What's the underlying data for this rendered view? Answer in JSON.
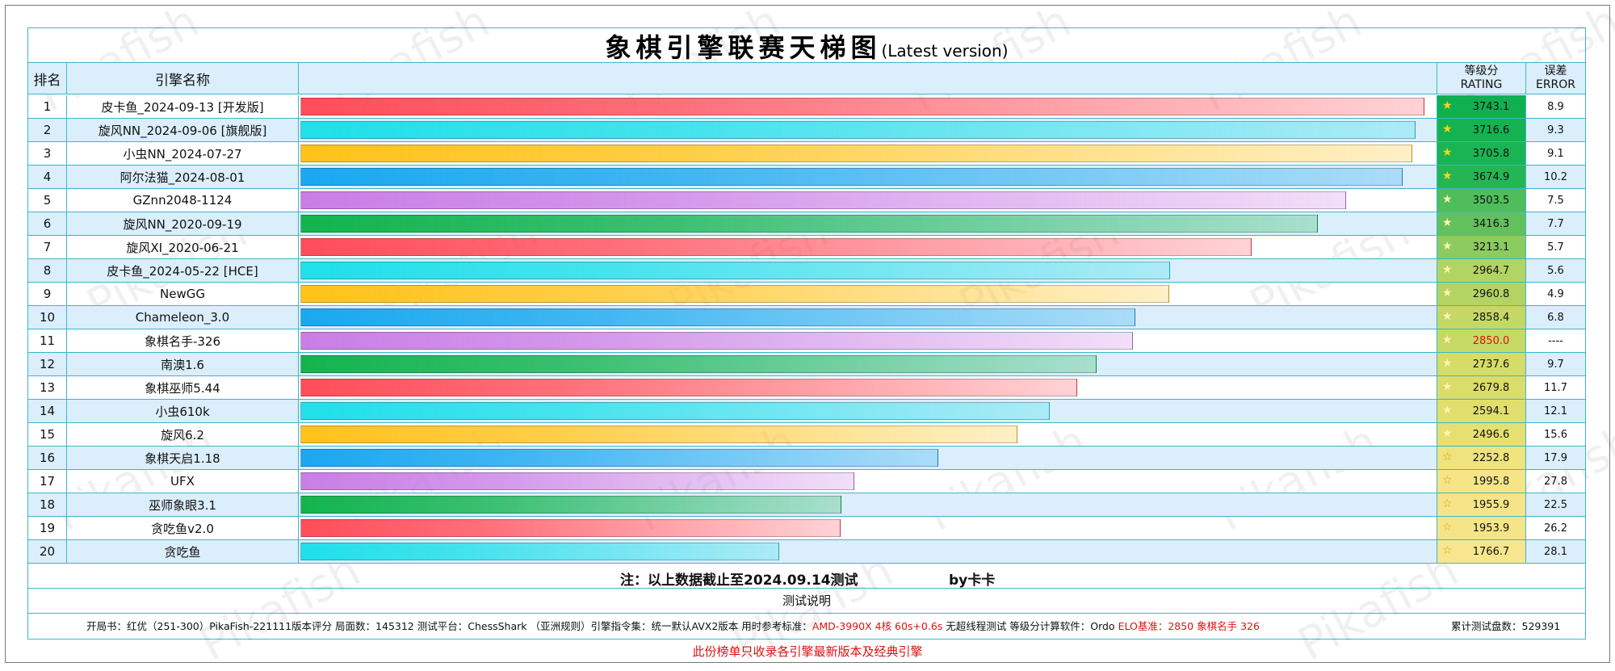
{
  "title": {
    "main": "象棋引擎联赛天梯图",
    "sub": "(Latest version)"
  },
  "watermark": "Pikafish",
  "headers": {
    "rank": "排名",
    "name": "引擎名称",
    "rating_cn": "等级分",
    "rating_en": "RATING",
    "error_cn": "误差",
    "error_en": "ERROR"
  },
  "chart_data": {
    "type": "bar",
    "orientation": "horizontal",
    "title": "象棋引擎联赛天梯图(Latest version)",
    "rows": [
      {
        "rank": "1",
        "name": "皮卡鱼_2024-09-13 [开发版]",
        "rating": 3743.1,
        "rating_text": "3743.1",
        "error": "8.9",
        "color": "#ff4d5a",
        "star_fill": "gold",
        "rating_bg": "#10b050"
      },
      {
        "rank": "2",
        "name": "旋风NN_2024-09-06 [旗舰版]",
        "rating": 3716.6,
        "rating_text": "3716.6",
        "error": "9.3",
        "color": "#1fe0ea",
        "star_fill": "gold",
        "rating_bg": "#14b251"
      },
      {
        "rank": "3",
        "name": "小虫NN_2024-07-27",
        "rating": 3705.8,
        "rating_text": "3705.8",
        "error": "9.1",
        "color": "#ffc21a",
        "star_fill": "gold",
        "rating_bg": "#1ab453"
      },
      {
        "rank": "4",
        "name": "阿尔法猫_2024-08-01",
        "rating": 3674.9,
        "rating_text": "3674.9",
        "error": "10.2",
        "color": "#1aa8f0",
        "star_fill": "gold",
        "rating_bg": "#24b655"
      },
      {
        "rank": "5",
        "name": "GZnn2048-1124",
        "rating": 3503.5,
        "rating_text": "3503.5",
        "error": "7.5",
        "color": "#c97ee6",
        "star_fill": "light",
        "rating_bg": "#4fbd5b"
      },
      {
        "rank": "6",
        "name": "旋风NN_2020-09-19",
        "rating": 3416.3,
        "rating_text": "3416.3",
        "error": "7.7",
        "color": "#12b44e",
        "star_fill": "light",
        "rating_bg": "#63c15d"
      },
      {
        "rank": "7",
        "name": "旋风XI_2020-06-21",
        "rating": 3213.1,
        "rating_text": "3213.1",
        "error": "5.7",
        "color": "#ff4d5a",
        "star_fill": "light",
        "rating_bg": "#8ccb60"
      },
      {
        "rank": "8",
        "name": "皮卡鱼_2024-05-22 [HCE]",
        "rating": 2964.7,
        "rating_text": "2964.7",
        "error": "5.6",
        "color": "#1fe0ea",
        "star_fill": "light",
        "rating_bg": "#b2d463"
      },
      {
        "rank": "9",
        "name": "NewGG",
        "rating": 2960.8,
        "rating_text": "2960.8",
        "error": "4.9",
        "color": "#ffc21a",
        "star_fill": "light",
        "rating_bg": "#b3d463"
      },
      {
        "rank": "10",
        "name": "Chameleon_3.0",
        "rating": 2858.4,
        "rating_text": "2858.4",
        "error": "6.8",
        "color": "#1aa8f0",
        "star_fill": "light",
        "rating_bg": "#c4d865"
      },
      {
        "rank": "11",
        "name": "象棋名手-326",
        "rating": 2850.0,
        "rating_text": "2850.0",
        "error": "----",
        "color": "#c97ee6",
        "star_fill": "light",
        "rating_bg": "#c6d965",
        "rating_color": "#e01010"
      },
      {
        "rank": "12",
        "name": "南澳1.6",
        "rating": 2737.6,
        "rating_text": "2737.6",
        "error": "9.7",
        "color": "#12b44e",
        "star_fill": "light",
        "rating_bg": "#d5dc68"
      },
      {
        "rank": "13",
        "name": "象棋巫师5.44",
        "rating": 2679.8,
        "rating_text": "2679.8",
        "error": "11.7",
        "color": "#ff4d5a",
        "star_fill": "light",
        "rating_bg": "#dadd6a"
      },
      {
        "rank": "14",
        "name": "小虫610k",
        "rating": 2594.1,
        "rating_text": "2594.1",
        "error": "12.1",
        "color": "#1fe0ea",
        "star_fill": "light",
        "rating_bg": "#e0df6e"
      },
      {
        "rank": "15",
        "name": "旋风6.2",
        "rating": 2496.6,
        "rating_text": "2496.6",
        "error": "15.6",
        "color": "#ffc21a",
        "star_fill": "light",
        "rating_bg": "#e6e073"
      },
      {
        "rank": "16",
        "name": "象棋天启1.18",
        "rating": 2252.8,
        "rating_text": "2252.8",
        "error": "17.9",
        "color": "#1aa8f0",
        "star_fill": "outline",
        "rating_bg": "#eee37c"
      },
      {
        "rank": "17",
        "name": "UFX",
        "rating": 1995.8,
        "rating_text": "1995.8",
        "error": "27.8",
        "color": "#c97ee6",
        "star_fill": "outline",
        "rating_bg": "#f5e586"
      },
      {
        "rank": "18",
        "name": "巫师象眼3.1",
        "rating": 1955.9,
        "rating_text": "1955.9",
        "error": "22.5",
        "color": "#12b44e",
        "star_fill": "outline",
        "rating_bg": "#f6e588"
      },
      {
        "rank": "19",
        "name": "贪吃鱼v2.0",
        "rating": 1953.9,
        "rating_text": "1953.9",
        "error": "26.2",
        "color": "#ff4d5a",
        "star_fill": "outline",
        "rating_bg": "#f6e588"
      },
      {
        "rank": "20",
        "name": "贪吃鱼",
        "rating": 1766.7,
        "rating_text": "1766.7",
        "error": "28.1",
        "color": "#1fe0ea",
        "star_fill": "outline",
        "rating_bg": "#f8e68e"
      }
    ],
    "bar_scale": {
      "rating_at_zero": 300,
      "rating_at_full": 3775
    }
  },
  "note": {
    "text": "注：以上数据截止至2024.09.14测试",
    "author": "by卡卡"
  },
  "explain": "测试说明",
  "info": {
    "part1": "开局书：红优（251-300）PikaFish-221111版本评分    局面数：145312    测试平台：ChessShark （亚洲规则）引擎指令集：统一默认AVX2版本    用时参考标准：",
    "part2_red": "AMD-3990X 4核 60s+0.6s",
    "part3": " 无超线程测试    等级分计算软件：Ordo  ",
    "part4_red": "ELO基准：2850 象棋名手 326",
    "right": "累计测试盘数：529391"
  },
  "footer": "此份榜单只收录各引擎最新版本及经典引擎"
}
